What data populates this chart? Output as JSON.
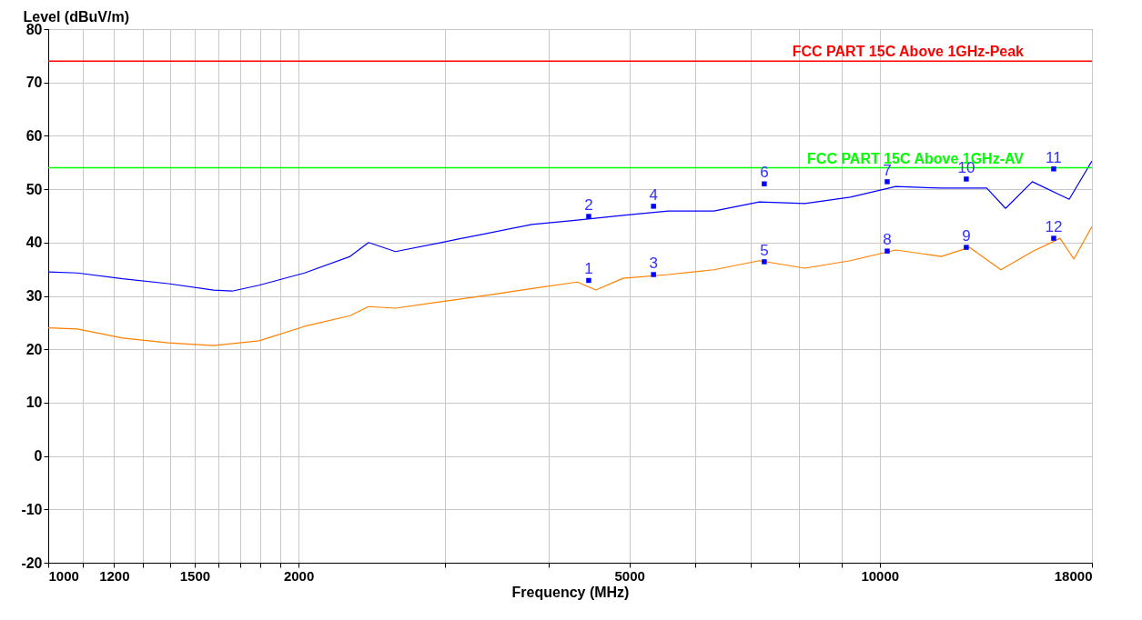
{
  "chart_data": {
    "type": "line",
    "xlabel": "Frequency (MHz)",
    "ylabel": "Level (dBuV/m)",
    "log": "x",
    "grid": true,
    "marker": "none",
    "xlim": [
      1000,
      18000
    ],
    "ylim": [
      -20,
      80
    ],
    "xticks": [
      1000,
      {
        "value": 1100,
        "label": null
      },
      1200,
      {
        "value": 1300,
        "label": null
      },
      {
        "value": 1400,
        "label": null
      },
      1500,
      {
        "value": 1600,
        "label": null
      },
      {
        "value": 1700,
        "label": null
      },
      {
        "value": 1800,
        "label": null
      },
      {
        "value": 1900,
        "label": null
      },
      2000,
      {
        "value": 3000,
        "label": null
      },
      {
        "value": 4000,
        "label": null
      },
      5000,
      {
        "value": 6000,
        "label": null
      },
      {
        "value": 7000,
        "label": null
      },
      {
        "value": 8000,
        "label": null
      },
      {
        "value": 9000,
        "label": null
      },
      10000,
      18000
    ],
    "yticks": [
      -20,
      -10,
      0,
      10,
      20,
      30,
      40,
      50,
      60,
      70,
      80
    ],
    "series": [
      {
        "color": "#0000ff",
        "x": [
          1000,
          1084,
          1229,
          1394,
          1581,
          1664,
          1793,
          2034,
          2307,
          2428,
          2616,
          2967,
          3366,
          3817,
          4330,
          4911,
          5570,
          6318,
          7166,
          8128,
          9219,
          10456,
          11860,
          13450,
          14170,
          15260,
          16900,
          18000
        ],
        "values": [
          34.5,
          34.3,
          33.2,
          32.3,
          31.1,
          30.9,
          32.0,
          34.3,
          37.4,
          40.0,
          38.3,
          40.0,
          41.7,
          43.4,
          44.2,
          45.1,
          45.9,
          45.9,
          47.6,
          47.3,
          48.5,
          50.5,
          50.2,
          50.2,
          46.4,
          51.4,
          48.1,
          55.3
        ]
      },
      {
        "color": "#ff8000",
        "x": [
          1000,
          1084,
          1229,
          1394,
          1581,
          1793,
          2034,
          2307,
          2428,
          2616,
          2967,
          3366,
          3817,
          4330,
          4558,
          4911,
          5570,
          6318,
          7166,
          8128,
          9219,
          10456,
          11860,
          12820,
          13990,
          15260,
          16480,
          17120,
          18000
        ],
        "values": [
          24.0,
          23.8,
          22.1,
          21.2,
          20.7,
          21.6,
          24.3,
          26.3,
          28.0,
          27.7,
          28.9,
          30.1,
          31.4,
          32.6,
          31.1,
          33.3,
          34.0,
          34.9,
          36.6,
          35.2,
          36.6,
          38.6,
          37.4,
          39.1,
          34.9,
          38.3,
          40.8,
          36.9,
          43.0
        ]
      }
    ],
    "ref_lines": [
      {
        "axis": "y",
        "value": 74,
        "label": "FCC PART 15C Above 1GHz-Peak",
        "color": "#ff0000"
      },
      {
        "axis": "y",
        "value": 54,
        "label": "FCC PART 15C Above 1GHz-AV",
        "color": "#00ff00"
      }
    ],
    "annotations": [
      {
        "text": "1",
        "x": 4467,
        "y": 32.9
      },
      {
        "text": "2",
        "x": 4467,
        "y": 44.9
      },
      {
        "text": "3",
        "x": 5345,
        "y": 34.0
      },
      {
        "text": "4",
        "x": 5345,
        "y": 46.8
      },
      {
        "text": "5",
        "x": 7264,
        "y": 36.4
      },
      {
        "text": "6",
        "x": 7264,
        "y": 51.0
      },
      {
        "text": "7",
        "x": 10210,
        "y": 51.4
      },
      {
        "text": "8",
        "x": 10210,
        "y": 38.4
      },
      {
        "text": "9",
        "x": 12710,
        "y": 39.1
      },
      {
        "text": "10",
        "x": 12710,
        "y": 51.9
      },
      {
        "text": "11",
        "x": 16190,
        "y": 53.8
      },
      {
        "text": "12",
        "x": 16190,
        "y": 40.8
      }
    ]
  }
}
